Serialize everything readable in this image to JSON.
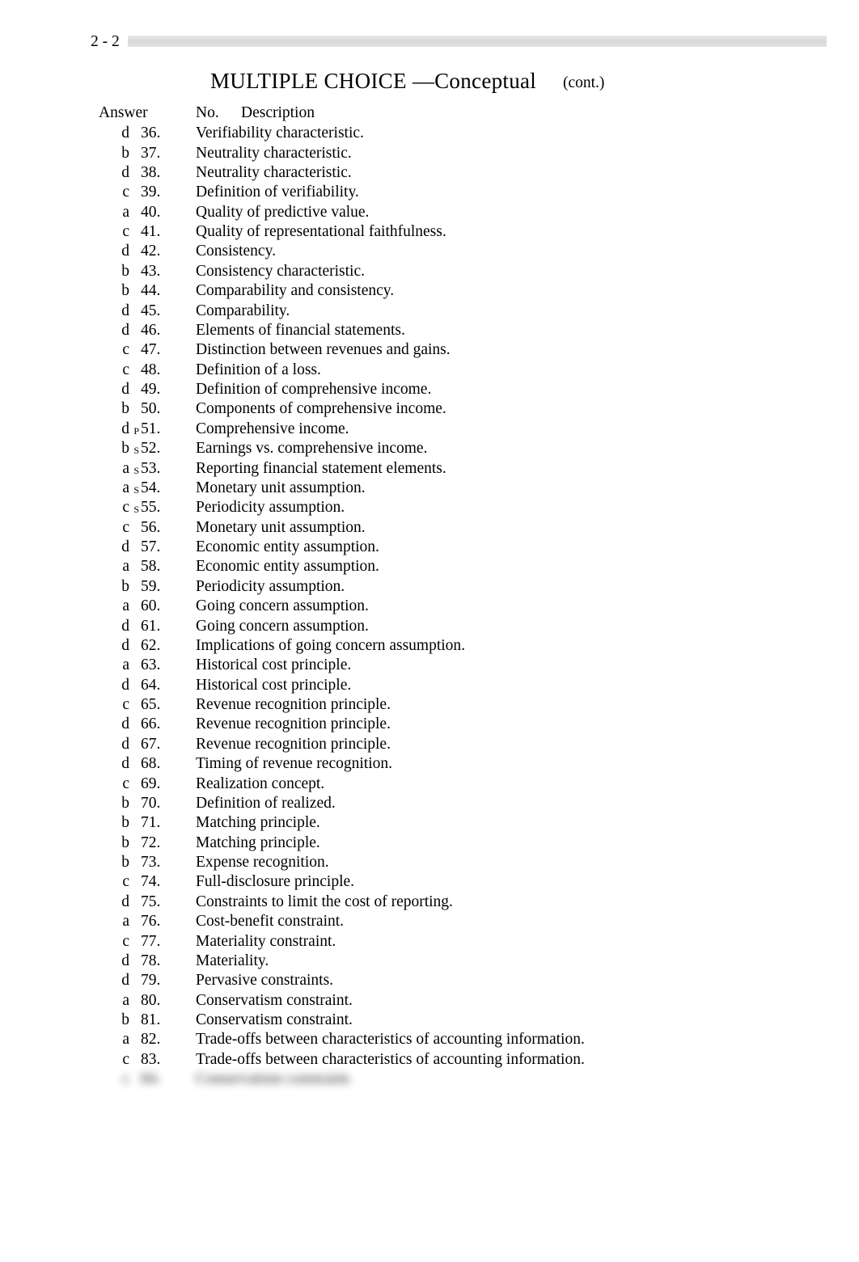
{
  "page_number": "2 - 2",
  "title_main": "MULTIPLE CHOICE",
  "title_dash": " —",
  "title_sub": "Conceptual",
  "title_cont": "(cont.)",
  "header": {
    "answer": "Answer",
    "no": "No.",
    "desc": "Description"
  },
  "hidden_row": {
    "ans": "c",
    "sup": "",
    "no": "84.",
    "desc": "Conservatism constraint."
  },
  "rows": [
    {
      "ans": "d",
      "sup": "",
      "no": "36.",
      "desc": "Verifiability characteristic."
    },
    {
      "ans": "b",
      "sup": "",
      "no": "37.",
      "desc": "Neutrality characteristic."
    },
    {
      "ans": "d",
      "sup": "",
      "no": "38.",
      "desc": "Neutrality characteristic."
    },
    {
      "ans": "c",
      "sup": "",
      "no": "39.",
      "desc": "Definition of verifiability."
    },
    {
      "ans": "a",
      "sup": "",
      "no": "40.",
      "desc": "Quality of predictive value."
    },
    {
      "ans": "c",
      "sup": "",
      "no": "41.",
      "desc": "Quality of representational faithfulness."
    },
    {
      "ans": "d",
      "sup": "",
      "no": "42.",
      "desc": "Consistency."
    },
    {
      "ans": "b",
      "sup": "",
      "no": "43.",
      "desc": "Consistency characteristic."
    },
    {
      "ans": "b",
      "sup": "",
      "no": "44.",
      "desc": "Comparability and consistency."
    },
    {
      "ans": "d",
      "sup": "",
      "no": "45.",
      "desc": "Comparability."
    },
    {
      "ans": "d",
      "sup": "",
      "no": "46.",
      "desc": "Elements of financial statements."
    },
    {
      "ans": "c",
      "sup": "",
      "no": "47.",
      "desc": "Distinction between revenues and gains."
    },
    {
      "ans": "c",
      "sup": "",
      "no": "48.",
      "desc": "Definition of a loss."
    },
    {
      "ans": "d",
      "sup": "",
      "no": "49.",
      "desc": "Definition of comprehensive income."
    },
    {
      "ans": "b",
      "sup": "",
      "no": "50.",
      "desc": "Components of comprehensive income."
    },
    {
      "ans": "d",
      "sup": "P",
      "no": "51.",
      "desc": "Comprehensive income."
    },
    {
      "ans": "b",
      "sup": "S",
      "no": "52.",
      "desc": "Earnings vs. comprehensive income."
    },
    {
      "ans": "a",
      "sup": "S",
      "no": "53.",
      "desc": "Reporting financial statement elements."
    },
    {
      "ans": "a",
      "sup": "S",
      "no": "54.",
      "desc": "Monetary unit assumption."
    },
    {
      "ans": "c",
      "sup": "S",
      "no": "55.",
      "desc": "Periodicity assumption."
    },
    {
      "ans": "c",
      "sup": "",
      "no": "56.",
      "desc": "Monetary unit assumption."
    },
    {
      "ans": "d",
      "sup": "",
      "no": "57.",
      "desc": "Economic entity assumption."
    },
    {
      "ans": "a",
      "sup": "",
      "no": "58.",
      "desc": "Economic entity assumption."
    },
    {
      "ans": "b",
      "sup": "",
      "no": "59.",
      "desc": "Periodicity assumption."
    },
    {
      "ans": "a",
      "sup": "",
      "no": "60.",
      "desc": "Going concern assumption."
    },
    {
      "ans": "d",
      "sup": "",
      "no": "61.",
      "desc": "Going concern assumption."
    },
    {
      "ans": "d",
      "sup": "",
      "no": "62.",
      "desc": "Implications of going concern assumption."
    },
    {
      "ans": "a",
      "sup": "",
      "no": "63.",
      "desc": "Historical cost principle."
    },
    {
      "ans": "d",
      "sup": "",
      "no": "64.",
      "desc": "Historical cost principle."
    },
    {
      "ans": "c",
      "sup": "",
      "no": "65.",
      "desc": "Revenue recognition principle."
    },
    {
      "ans": "d",
      "sup": "",
      "no": "66.",
      "desc": "Revenue recognition principle."
    },
    {
      "ans": "d",
      "sup": "",
      "no": "67.",
      "desc": "Revenue recognition principle."
    },
    {
      "ans": "d",
      "sup": "",
      "no": "68.",
      "desc": "Timing of revenue recognition."
    },
    {
      "ans": "c",
      "sup": "",
      "no": "69.",
      "desc": "Realization concept."
    },
    {
      "ans": "b",
      "sup": "",
      "no": "70.",
      "desc": "Definition of realized."
    },
    {
      "ans": "b",
      "sup": "",
      "no": "71.",
      "desc": "Matching principle."
    },
    {
      "ans": "b",
      "sup": "",
      "no": "72.",
      "desc": "Matching principle."
    },
    {
      "ans": "b",
      "sup": "",
      "no": "73.",
      "desc": "Expense recognition."
    },
    {
      "ans": "c",
      "sup": "",
      "no": "74.",
      "desc": "Full-disclosure principle."
    },
    {
      "ans": "d",
      "sup": "",
      "no": "75.",
      "desc": "Constraints to limit the cost of reporting."
    },
    {
      "ans": "a",
      "sup": "",
      "no": "76.",
      "desc": "Cost-benefit constraint."
    },
    {
      "ans": "c",
      "sup": "",
      "no": "77.",
      "desc": "Materiality constraint."
    },
    {
      "ans": "d",
      "sup": "",
      "no": "78.",
      "desc": "Materiality."
    },
    {
      "ans": "d",
      "sup": "",
      "no": "79.",
      "desc": "Pervasive constraints."
    },
    {
      "ans": "a",
      "sup": "",
      "no": "80.",
      "desc": "Conservatism constraint."
    },
    {
      "ans": "b",
      "sup": "",
      "no": "81.",
      "desc": "Conservatism constraint."
    },
    {
      "ans": "a",
      "sup": "",
      "no": "82.",
      "desc": "Trade-offs between characteristics of accounting information."
    },
    {
      "ans": "c",
      "sup": "",
      "no": "83.",
      "desc": "Trade-offs between characteristics of accounting information."
    }
  ],
  "colors": {
    "text": "#000000",
    "background": "#ffffff",
    "bar_gradient_top": "#e8e8e8",
    "bar_gradient_mid": "#d8d8d8"
  },
  "typography": {
    "body_font": "Times New Roman",
    "body_size_pt": 14,
    "title_size_pt": 20,
    "sup_size_pt": 9
  }
}
